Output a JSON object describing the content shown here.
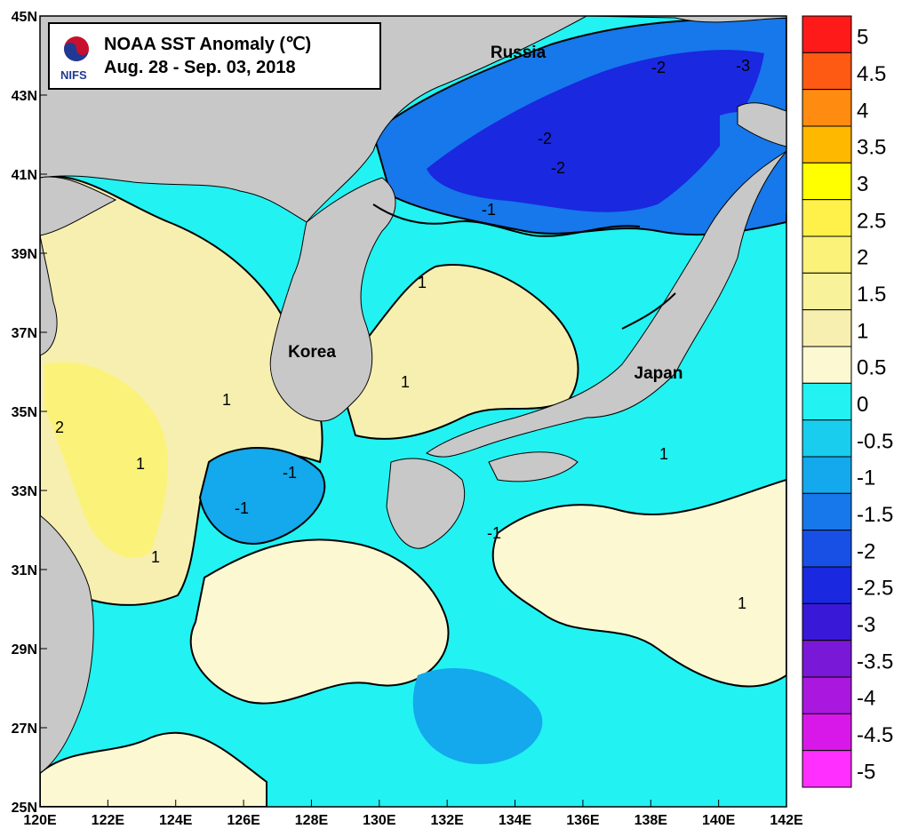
{
  "header": {
    "logo_text": "NIFS",
    "title": "NOAA SST Anomaly (℃)",
    "date_range": "Aug. 28 - Sep. 03, 2018"
  },
  "place_labels": [
    "Russia",
    "Korea",
    "Japan"
  ],
  "axes": {
    "x_ticks": [
      "120E",
      "122E",
      "124E",
      "126E",
      "128E",
      "130E",
      "132E",
      "134E",
      "136E",
      "138E",
      "140E",
      "142E"
    ],
    "y_ticks": [
      "45N",
      "43N",
      "41N",
      "39N",
      "37N",
      "35N",
      "33N",
      "31N",
      "29N",
      "27N",
      "25N"
    ],
    "lon_range": [
      120,
      142
    ],
    "lat_range": [
      25,
      45
    ]
  },
  "colorbar": {
    "labels": [
      "5",
      "4.5",
      "4",
      "3.5",
      "3",
      "2.5",
      "2",
      "1.5",
      "1",
      "0.5",
      "0",
      "-0.5",
      "-1",
      "-1.5",
      "-2",
      "-2.5",
      "-3",
      "-3.5",
      "-4",
      "-4.5",
      "-5"
    ],
    "colors": [
      "#ff1a1a",
      "#ff5a14",
      "#ff8c10",
      "#ffb800",
      "#ffff00",
      "#fff04a",
      "#fbf27a",
      "#f8f29a",
      "#f7efb0",
      "#fbf8d2",
      "#22f2f2",
      "#18cdee",
      "#14a8ec",
      "#1678ea",
      "#1850e6",
      "#1a28e0",
      "#3a18d8",
      "#7a18d8",
      "#aa18e0",
      "#d818e8",
      "#ff30ff"
    ]
  },
  "contour_labels": [
    "-2",
    "-2",
    "-2",
    "-3",
    "-1",
    "1",
    "1",
    "1",
    "1",
    "1",
    "1",
    "-1",
    "-1",
    "2",
    "1",
    "-1"
  ],
  "colors": {
    "land": "#c8c8c8",
    "zero_contour": "#000000"
  }
}
